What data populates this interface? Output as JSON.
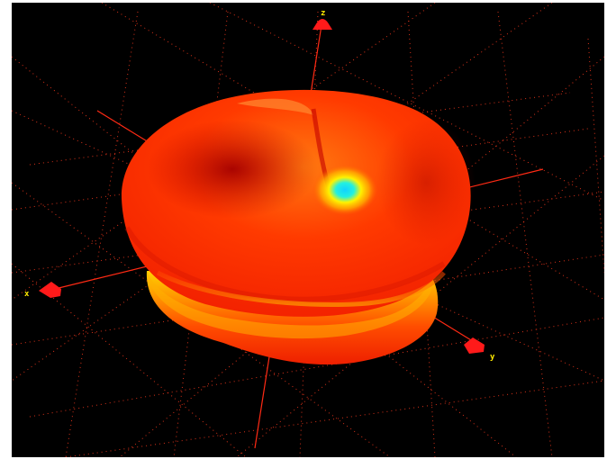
{
  "viewer": {
    "background": "#000000",
    "grid_color": "#ff3b1f",
    "axis_color": "#ff2a14",
    "marker_color": "#ff1a1a",
    "label_color": "#ffea00"
  },
  "axis_labels": {
    "z": "z",
    "x": "x",
    "y": "y"
  },
  "surface": {
    "colormap": [
      "#00d8ff",
      "#ffff00",
      "#ffae00",
      "#ff5a00",
      "#e81500",
      "#b00000"
    ],
    "shading": "interpolated"
  },
  "icons": [
    "arrow-marker-z",
    "arrow-marker-x",
    "arrow-marker-y"
  ]
}
